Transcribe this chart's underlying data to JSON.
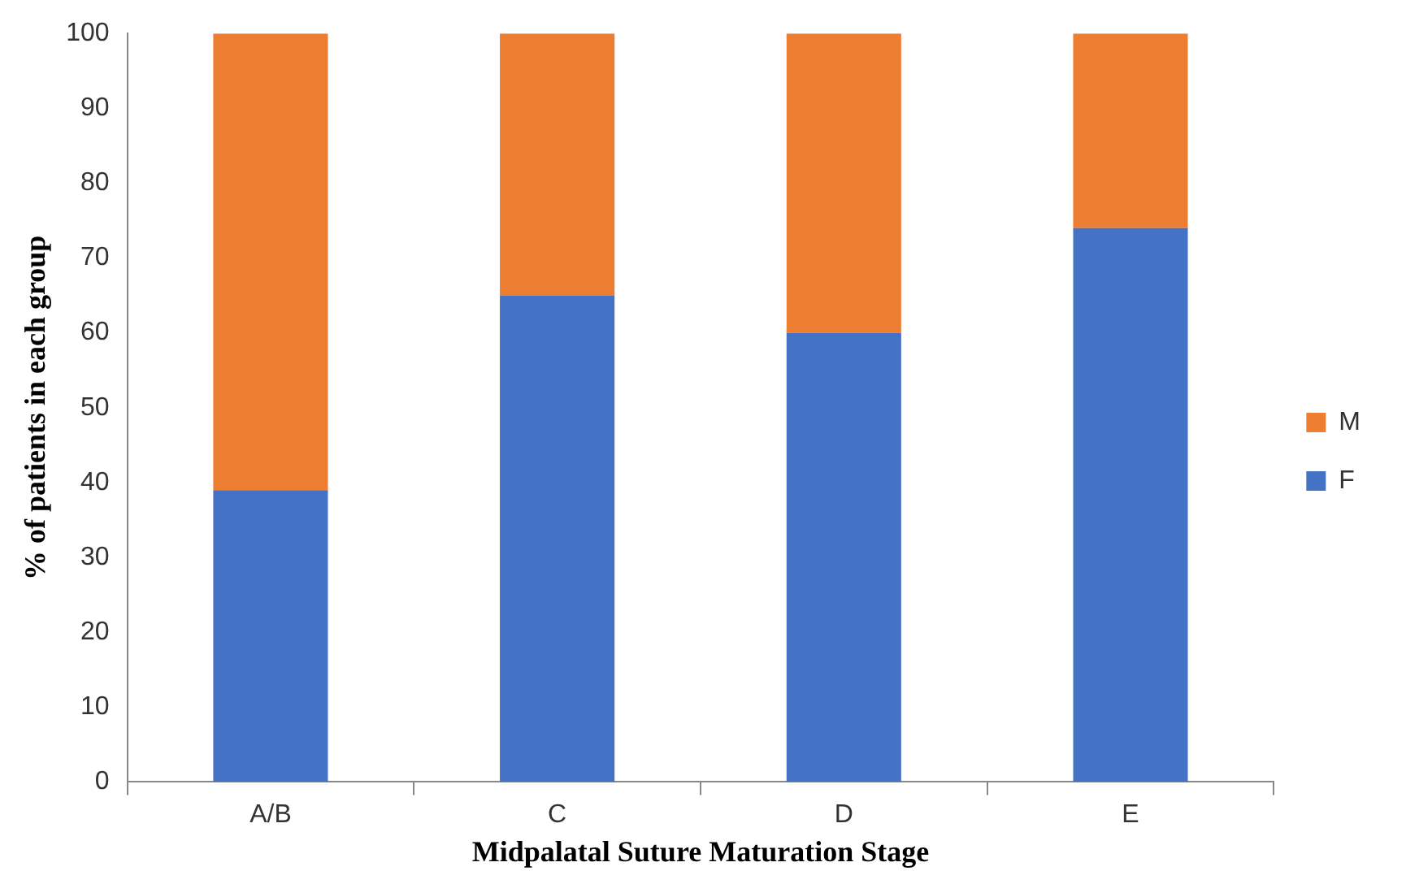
{
  "chart_data": {
    "type": "bar",
    "stacked": true,
    "xlabel": "Midpalatal Suture Maturation Stage",
    "ylabel": "% of patients in each group",
    "categories": [
      "A/B",
      "C",
      "D",
      "E"
    ],
    "series": [
      {
        "name": "F",
        "color": "#4472c4",
        "values": [
          39,
          65,
          60,
          74
        ]
      },
      {
        "name": "M",
        "color": "#ed7d31",
        "values": [
          61,
          35,
          40,
          26
        ]
      }
    ],
    "ylim": [
      0,
      100
    ],
    "yticks": [
      0,
      10,
      20,
      30,
      40,
      50,
      60,
      70,
      80,
      90,
      100
    ],
    "grid": false,
    "legend": "right"
  }
}
